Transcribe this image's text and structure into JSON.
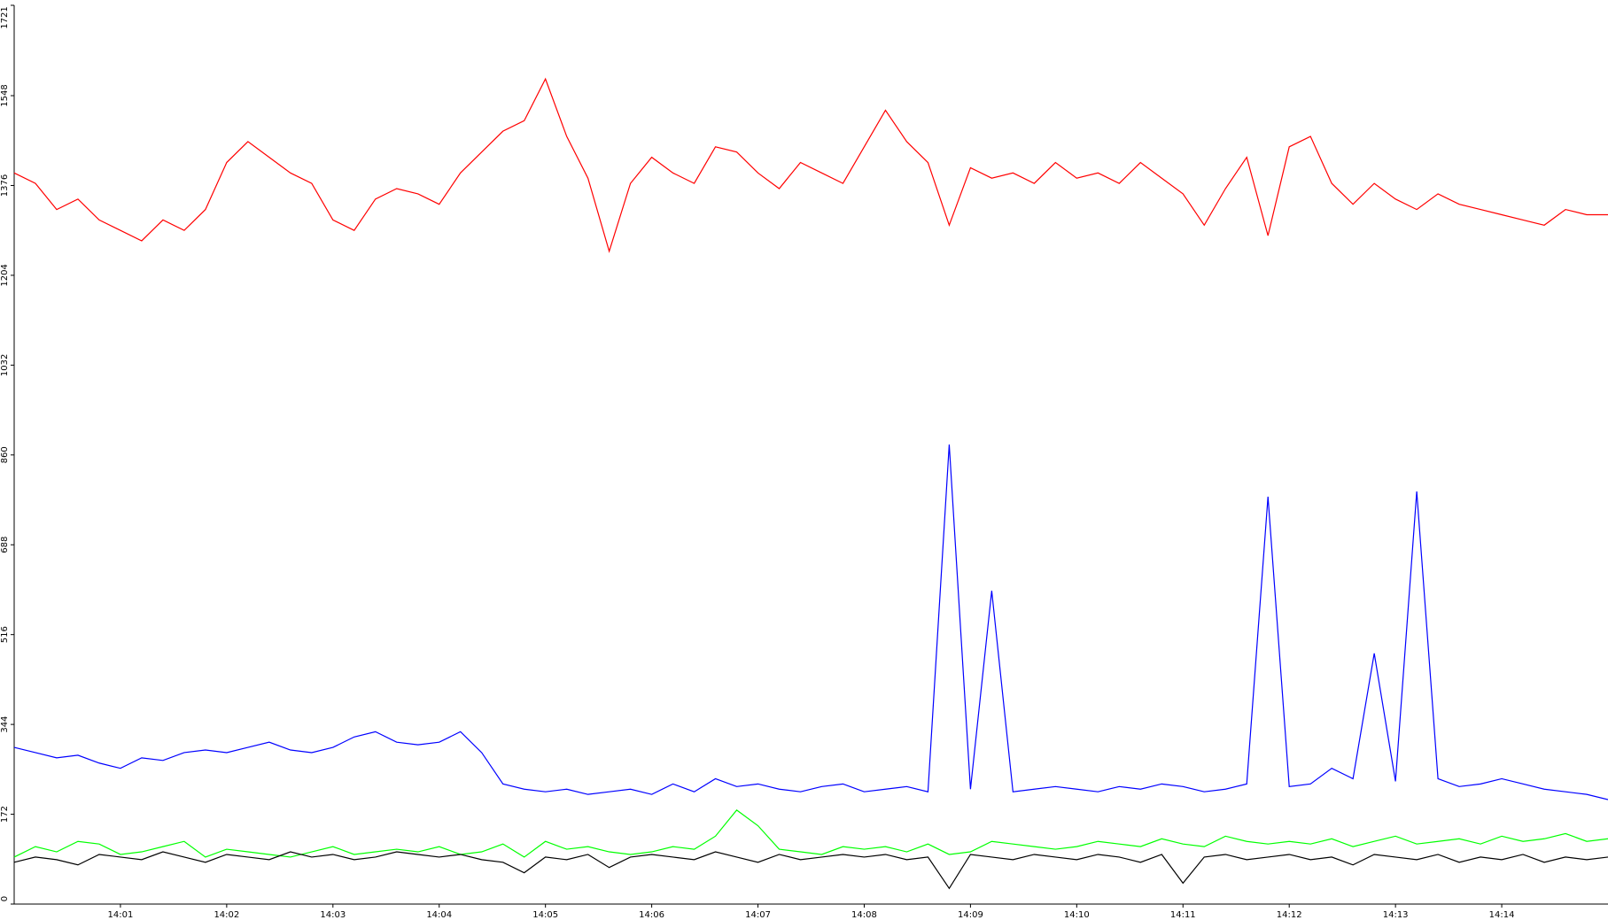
{
  "chart_data": {
    "type": "line",
    "x": [
      0,
      0.2,
      0.4,
      0.6,
      0.8,
      1,
      1.2,
      1.4,
      1.6,
      1.8,
      2,
      2.2,
      2.4,
      2.6,
      2.8,
      3,
      3.2,
      3.4,
      3.6,
      3.8,
      4,
      4.2,
      4.4,
      4.6,
      4.8,
      5,
      5.2,
      5.4,
      5.6,
      5.8,
      6,
      6.2,
      6.4,
      6.6,
      6.8,
      7,
      7.2,
      7.4,
      7.6,
      7.8,
      8,
      8.2,
      8.4,
      8.6,
      8.8,
      9,
      9.2,
      9.4,
      9.6,
      9.8,
      10,
      10.2,
      10.4,
      10.6,
      10.8,
      11,
      11.2,
      11.4,
      11.6,
      11.8,
      12,
      12.2,
      12.4,
      12.6,
      12.8,
      13,
      13.2,
      13.4,
      13.6,
      13.8,
      14,
      14.2,
      14.4,
      14.6,
      14.8,
      15
    ],
    "series": [
      {
        "color": "#ff0000",
        "values": [
          1400,
          1380,
          1330,
          1350,
          1310,
          1290,
          1270,
          1310,
          1290,
          1330,
          1420,
          1460,
          1430,
          1400,
          1380,
          1310,
          1290,
          1350,
          1370,
          1360,
          1340,
          1400,
          1440,
          1480,
          1500,
          1580,
          1470,
          1390,
          1250,
          1380,
          1430,
          1400,
          1380,
          1450,
          1440,
          1400,
          1370,
          1420,
          1400,
          1380,
          1450,
          1520,
          1460,
          1420,
          1300,
          1410,
          1390,
          1400,
          1380,
          1420,
          1390,
          1400,
          1380,
          1420,
          1390,
          1360,
          1300,
          1370,
          1430,
          1280,
          1450,
          1470,
          1380,
          1340,
          1380,
          1350,
          1330,
          1360,
          1340,
          1330,
          1320,
          1310,
          1300,
          1330,
          1320,
          1320
        ]
      },
      {
        "color": "#0000ff",
        "values": [
          300,
          290,
          280,
          285,
          270,
          260,
          280,
          275,
          290,
          295,
          290,
          300,
          310,
          295,
          290,
          300,
          320,
          330,
          310,
          305,
          310,
          330,
          290,
          230,
          220,
          215,
          220,
          210,
          215,
          220,
          210,
          230,
          215,
          240,
          225,
          230,
          220,
          215,
          225,
          230,
          215,
          220,
          225,
          215,
          880,
          220,
          600,
          215,
          220,
          225,
          220,
          215,
          225,
          220,
          230,
          225,
          215,
          220,
          230,
          780,
          225,
          230,
          260,
          240,
          480,
          235,
          790,
          240,
          225,
          230,
          240,
          230,
          220,
          215,
          210,
          200
        ]
      },
      {
        "color": "#00ff00",
        "values": [
          90,
          110,
          100,
          120,
          115,
          95,
          100,
          110,
          120,
          90,
          105,
          100,
          95,
          90,
          100,
          110,
          95,
          100,
          105,
          100,
          110,
          95,
          100,
          115,
          90,
          120,
          105,
          110,
          100,
          95,
          100,
          110,
          105,
          130,
          180,
          150,
          105,
          100,
          95,
          110,
          105,
          110,
          100,
          115,
          95,
          100,
          120,
          115,
          110,
          105,
          110,
          120,
          115,
          110,
          125,
          115,
          110,
          130,
          120,
          115,
          120,
          115,
          125,
          110,
          120,
          130,
          115,
          120,
          125,
          115,
          130,
          120,
          125,
          135,
          120,
          125
        ]
      },
      {
        "color": "#000000",
        "values": [
          80,
          90,
          85,
          75,
          95,
          90,
          85,
          100,
          90,
          80,
          95,
          90,
          85,
          100,
          90,
          95,
          85,
          90,
          100,
          95,
          90,
          95,
          85,
          80,
          60,
          90,
          85,
          95,
          70,
          90,
          95,
          90,
          85,
          100,
          90,
          80,
          95,
          85,
          90,
          95,
          90,
          95,
          85,
          90,
          30,
          95,
          90,
          85,
          95,
          90,
          85,
          95,
          90,
          80,
          95,
          40,
          90,
          95,
          85,
          90,
          95,
          85,
          90,
          75,
          95,
          90,
          85,
          95,
          80,
          90,
          85,
          95,
          80,
          90,
          85,
          90
        ]
      }
    ],
    "xlim": [
      0,
      15
    ],
    "xticks": [
      {
        "value": 1,
        "label": "14:01"
      },
      {
        "value": 2,
        "label": "14:02"
      },
      {
        "value": 3,
        "label": "14:03"
      },
      {
        "value": 4,
        "label": "14:04"
      },
      {
        "value": 5,
        "label": "14:05"
      },
      {
        "value": 6,
        "label": "14:06"
      },
      {
        "value": 7,
        "label": "14:07"
      },
      {
        "value": 8,
        "label": "14:08"
      },
      {
        "value": 9,
        "label": "14:09"
      },
      {
        "value": 10,
        "label": "14:10"
      },
      {
        "value": 11,
        "label": "14:11"
      },
      {
        "value": 12,
        "label": "14:12"
      },
      {
        "value": 13,
        "label": "14:13"
      },
      {
        "value": 14,
        "label": "14:14"
      }
    ],
    "ylim": [
      0,
      1721
    ],
    "yticks": [
      0,
      172,
      344,
      516,
      688,
      860,
      1032,
      1204,
      1376,
      1548,
      1721
    ]
  }
}
